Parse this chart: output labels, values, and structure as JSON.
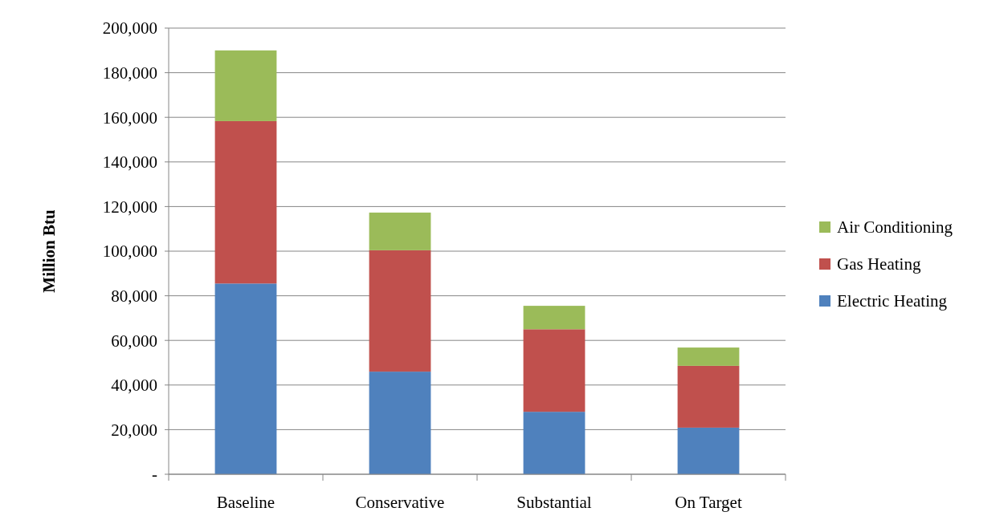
{
  "chart_data": {
    "type": "bar",
    "stacked": true,
    "ylabel": "Million Btu",
    "categories": [
      "Baseline",
      "Conservative",
      "Substantial",
      "On Target"
    ],
    "series": [
      {
        "name": "Electric Heating",
        "color": "#4f81bd",
        "values": [
          85500,
          46000,
          28000,
          20900
        ]
      },
      {
        "name": "Gas Heating",
        "color": "#c0504d",
        "values": [
          72800,
          54400,
          37000,
          27700
        ]
      },
      {
        "name": "Air Conditioning",
        "color": "#9bbb59",
        "values": [
          31700,
          16900,
          10500,
          8200
        ]
      }
    ],
    "ylim": [
      0,
      200000
    ],
    "yticks": [
      {
        "value": 0,
        "label": "-"
      },
      {
        "value": 20000,
        "label": "20,000"
      },
      {
        "value": 40000,
        "label": "40,000"
      },
      {
        "value": 60000,
        "label": "60,000"
      },
      {
        "value": 80000,
        "label": "80,000"
      },
      {
        "value": 100000,
        "label": "100,000"
      },
      {
        "value": 120000,
        "label": "120,000"
      },
      {
        "value": 140000,
        "label": "140,000"
      },
      {
        "value": 160000,
        "label": "160,000"
      },
      {
        "value": 180000,
        "label": "180,000"
      },
      {
        "value": 200000,
        "label": "200,000"
      }
    ],
    "grid": "y",
    "legend": "right"
  }
}
